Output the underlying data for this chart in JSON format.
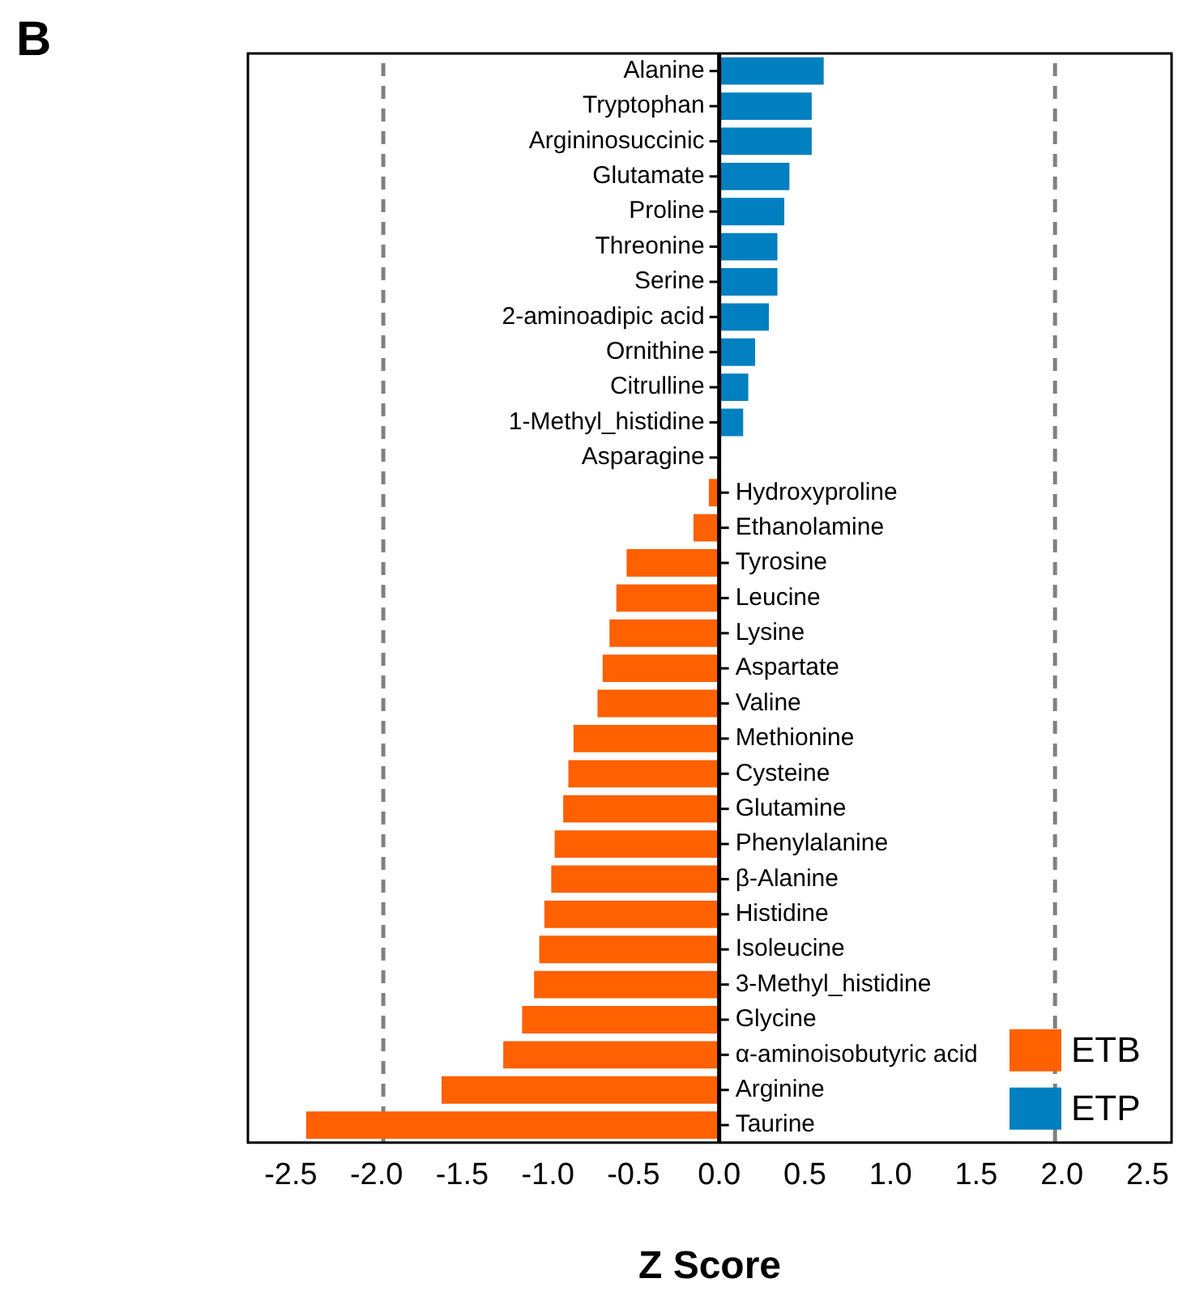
{
  "chart_data": {
    "type": "bar",
    "title": "B",
    "xlabel": "Z Score",
    "orientation": "horizontal",
    "categories": [
      "Alanine",
      "Tryptophan",
      "Argininosuccinic",
      "Glutamate",
      "Proline",
      "Threonine",
      "Serine",
      "2-aminoadipic acid",
      "Ornithine",
      "Citrulline",
      "1-Methyl_histidine",
      "Asparagine",
      "Hydroxyproline",
      "Ethanolamine",
      "Tyrosine",
      "Leucine",
      "Lysine",
      "Aspartate",
      "Valine",
      "Methionine",
      "Cysteine",
      "Glutamine",
      "Phenylalanine",
      "β-Alanine",
      "Histidine",
      "Isoleucine",
      "3-Methyl_histidine",
      "Glycine",
      "α-aminoisobutyric acid",
      "Arginine",
      "Taurine"
    ],
    "series": [
      {
        "name": "ETB",
        "color": "#ff6000",
        "values": [
          null,
          null,
          null,
          null,
          null,
          null,
          null,
          null,
          null,
          null,
          null,
          null,
          -0.06,
          -0.15,
          -0.54,
          -0.6,
          -0.64,
          -0.68,
          -0.71,
          -0.85,
          -0.88,
          -0.91,
          -0.96,
          -0.98,
          -1.02,
          -1.05,
          -1.08,
          -1.15,
          -1.26,
          -1.62,
          -2.41
        ]
      },
      {
        "name": "ETP",
        "color": "#0080c0",
        "values": [
          0.61,
          0.54,
          0.54,
          0.41,
          0.38,
          0.34,
          0.34,
          0.29,
          0.21,
          0.17,
          0.14,
          0,
          null,
          null,
          null,
          null,
          null,
          null,
          null,
          null,
          null,
          null,
          null,
          null,
          null,
          null,
          null,
          null,
          null,
          null,
          null
        ]
      }
    ],
    "xlim": [
      -2.75,
      2.64
    ],
    "xticks": [
      {
        "value": -2.5,
        "label": "-2.5"
      },
      {
        "value": -2,
        "label": "-2.0"
      },
      {
        "value": -1.5,
        "label": "-1.5"
      },
      {
        "value": -1,
        "label": "-1.0"
      },
      {
        "value": -0.5,
        "label": "-0.5"
      },
      {
        "value": 0,
        "label": "0.0"
      },
      {
        "value": 0.5,
        "label": "0.5"
      },
      {
        "value": 1,
        "label": "1.0"
      },
      {
        "value": 1.5,
        "label": "1.5"
      },
      {
        "value": 2,
        "label": "2.0"
      },
      {
        "value": 2.5,
        "label": "2.5"
      }
    ],
    "ref_lines": [
      {
        "axis": "x",
        "value": -1.96,
        "color": "#808080",
        "line_style": "dashed"
      },
      {
        "axis": "x",
        "value": 1.96,
        "color": "#808080",
        "line_style": "dashed"
      }
    ],
    "grid": false,
    "legend": "bottom right"
  }
}
